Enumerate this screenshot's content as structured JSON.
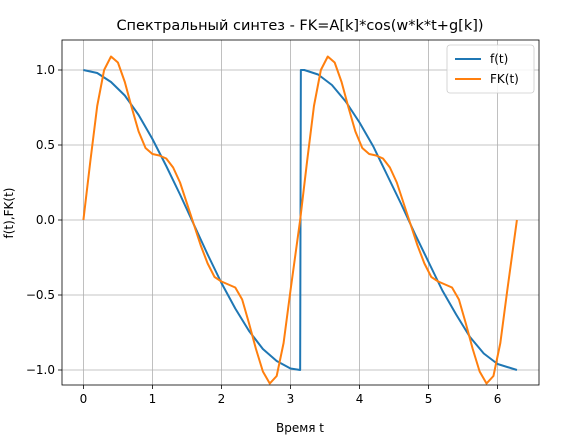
{
  "chart_data": {
    "type": "line",
    "title": "Спектральный синтез - FK=A[k]*cos(w*k*t+g[k])",
    "xlabel": "Время t",
    "ylabel": "f(t),FK(t)",
    "xlim": [
      -0.31,
      6.6
    ],
    "ylim": [
      -1.1,
      1.2
    ],
    "xticks": [
      0,
      1,
      2,
      3,
      4,
      5,
      6
    ],
    "yticks": [
      -1.0,
      -0.5,
      0.0,
      0.5,
      1.0
    ],
    "xtick_labels": [
      "0",
      "1",
      "2",
      "3",
      "4",
      "5",
      "6"
    ],
    "ytick_labels": [
      "−1.0",
      "−0.5",
      "0.0",
      "0.5",
      "1.0"
    ],
    "grid": true,
    "legend_position": "top-right",
    "series": [
      {
        "name": "f(t)",
        "color": "#1f77b4",
        "x": [
          0,
          0.2,
          0.4,
          0.6,
          0.8,
          1.0,
          1.2,
          1.4,
          1.6,
          1.8,
          2.0,
          2.2,
          2.4,
          2.6,
          2.8,
          3.0,
          3.14,
          3.15,
          3.2,
          3.4,
          3.6,
          3.8,
          4.0,
          4.2,
          4.4,
          4.6,
          4.8,
          5.0,
          5.2,
          5.4,
          5.6,
          5.8,
          6.0,
          6.28
        ],
        "y": [
          1.0,
          0.98,
          0.92,
          0.83,
          0.7,
          0.54,
          0.36,
          0.17,
          -0.03,
          -0.23,
          -0.42,
          -0.59,
          -0.74,
          -0.86,
          -0.94,
          -0.99,
          -1.0,
          1.0,
          1.0,
          0.97,
          0.9,
          0.79,
          0.65,
          0.49,
          0.3,
          0.11,
          -0.09,
          -0.28,
          -0.47,
          -0.63,
          -0.78,
          -0.89,
          -0.96,
          -1.0
        ]
      },
      {
        "name": "FK(t)",
        "color": "#ff7f0e",
        "x": [
          0,
          0.1,
          0.2,
          0.3,
          0.4,
          0.5,
          0.6,
          0.7,
          0.8,
          0.9,
          1.0,
          1.1,
          1.2,
          1.3,
          1.4,
          1.5,
          1.6,
          1.7,
          1.8,
          1.9,
          2.0,
          2.1,
          2.2,
          2.3,
          2.4,
          2.5,
          2.6,
          2.7,
          2.8,
          2.9,
          3.0,
          3.14,
          3.24,
          3.34,
          3.44,
          3.54,
          3.64,
          3.74,
          3.84,
          3.94,
          4.04,
          4.14,
          4.24,
          4.34,
          4.44,
          4.54,
          4.64,
          4.74,
          4.84,
          4.94,
          5.04,
          5.14,
          5.24,
          5.34,
          5.44,
          5.54,
          5.64,
          5.74,
          5.84,
          5.94,
          6.04,
          6.14,
          6.28
        ],
        "y": [
          0.0,
          0.39,
          0.76,
          1.0,
          1.09,
          1.05,
          0.92,
          0.75,
          0.59,
          0.48,
          0.44,
          0.43,
          0.41,
          0.35,
          0.25,
          0.11,
          -0.03,
          -0.17,
          -0.29,
          -0.38,
          -0.41,
          -0.43,
          -0.45,
          -0.53,
          -0.69,
          -0.86,
          -1.01,
          -1.09,
          -1.04,
          -0.82,
          -0.47,
          0.0,
          0.39,
          0.76,
          1.0,
          1.09,
          1.05,
          0.92,
          0.75,
          0.59,
          0.48,
          0.44,
          0.43,
          0.41,
          0.35,
          0.25,
          0.11,
          -0.03,
          -0.17,
          -0.29,
          -0.38,
          -0.41,
          -0.43,
          -0.45,
          -0.53,
          -0.69,
          -0.86,
          -1.01,
          -1.09,
          -1.04,
          -0.82,
          -0.47,
          0.0
        ]
      }
    ]
  }
}
